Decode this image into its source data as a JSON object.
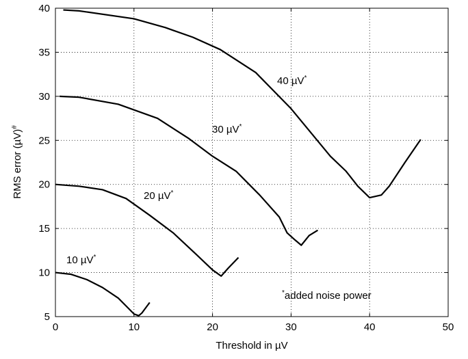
{
  "chart_data": {
    "type": "line",
    "xlabel": "Threshold in µV",
    "ylabel": "RMS error (µV)",
    "ylabel_sup": "#",
    "xlim": [
      0,
      50
    ],
    "xticks": [
      0,
      10,
      20,
      30,
      40,
      50
    ],
    "ylim": [
      5,
      40
    ],
    "yticks": [
      5,
      10,
      15,
      20,
      25,
      30,
      35,
      40
    ],
    "grid": true,
    "series": [
      {
        "name": "10 µV",
        "name_sup": "*",
        "color": "#000000",
        "x": [
          0,
          2,
          4,
          6,
          8,
          9,
          10,
          10.6,
          11,
          12
        ],
        "values": [
          10,
          9.8,
          9.2,
          8.3,
          7.1,
          6.2,
          5.3,
          5.1,
          5.4,
          6.6
        ]
      },
      {
        "name": "20 µV",
        "name_sup": "*",
        "color": "#000000",
        "x": [
          0,
          3,
          6,
          9,
          12,
          15,
          18,
          20,
          21.1,
          22,
          23.3
        ],
        "values": [
          20,
          19.8,
          19.4,
          18.4,
          16.5,
          14.5,
          12,
          10.3,
          9.6,
          10.5,
          11.7
        ]
      },
      {
        "name": "30 µV",
        "name_sup": "*",
        "color": "#000000",
        "x": [
          0.5,
          3,
          8,
          13,
          17,
          20,
          23,
          26,
          28.5,
          29.5,
          30.5,
          31.3,
          32.3,
          33.4
        ],
        "values": [
          30,
          29.9,
          29.1,
          27.5,
          25.2,
          23.2,
          21.5,
          18.8,
          16.3,
          14.5,
          13.7,
          13.1,
          14.2,
          14.8
        ]
      },
      {
        "name": "40 µV",
        "name_sup": "*",
        "color": "#000000",
        "x": [
          1,
          3,
          10,
          14,
          17.5,
          21,
          25.5,
          30,
          35,
          37,
          38.5,
          40,
          41.5,
          42.5,
          44.5,
          46.5
        ],
        "values": [
          39.8,
          39.7,
          38.8,
          37.8,
          36.7,
          35.3,
          32.7,
          28.6,
          23.2,
          21.5,
          19.8,
          18.5,
          18.8,
          19.8,
          22.5,
          25.1
        ]
      }
    ],
    "note_sup": "*",
    "note": "added noise power"
  }
}
